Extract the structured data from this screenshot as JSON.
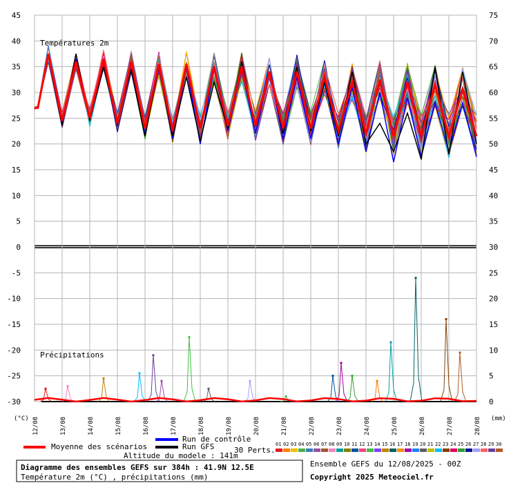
{
  "colors": {
    "grid": "#b4b4b4",
    "mean": "#ff0000",
    "control": "#0000ff",
    "gfs": "#000000",
    "member_palette": [
      "#e41a1c",
      "#ff7f00",
      "#f0c000",
      "#4daf4a",
      "#377eb8",
      "#984ea3",
      "#a65628",
      "#f781bf",
      "#00a0a0",
      "#808000",
      "#0050a0",
      "#ff4080",
      "#40c040",
      "#8040ff",
      "#c08000",
      "#006060",
      "#ff8c00",
      "#a000a0",
      "#2080ff",
      "#606060",
      "#c0c000",
      "#00c0ff",
      "#804000",
      "#e00060",
      "#30a030",
      "#1010a0",
      "#a0a0ff",
      "#ff6060",
      "#6a3d9a",
      "#b15928"
    ]
  },
  "header": {
    "temp_panel_label": "Températures 2m",
    "precip_panel_label": "Précipitations",
    "left_unit": "(°C)",
    "right_unit": "(mm)"
  },
  "legend": {
    "mean_label": "Moyenne des scénarios",
    "control_label": "Run de contrôle",
    "gfs_label": "Run GFS",
    "perts_label": "30 Perts.",
    "member_numbers": [
      "01",
      "02",
      "03",
      "04",
      "05",
      "06",
      "07",
      "08",
      "09",
      "10",
      "11",
      "12",
      "13",
      "14",
      "15",
      "16",
      "17",
      "18",
      "19",
      "20",
      "21",
      "22",
      "23",
      "24",
      "25",
      "26",
      "27",
      "28",
      "29",
      "30"
    ]
  },
  "footer": {
    "altitude": "Altitude du modele : 141m",
    "title_line1": "Diagramme des ensembles GEFS sur 384h : 41.9N 12.5E",
    "title_line2": "Température 2m (°C) , précipitations (mm)",
    "run_info": "Ensemble GEFS du 12/08/2025 - 00Z",
    "copyright": "Copyright 2025 Meteociel.fr"
  },
  "chart_data": {
    "type": "line",
    "x_dates": [
      "12/08",
      "13/08",
      "14/08",
      "15/08",
      "16/08",
      "17/08",
      "18/08",
      "19/08",
      "20/08",
      "21/08",
      "22/08",
      "23/08",
      "24/08",
      "25/08",
      "26/08",
      "27/08",
      "28/08"
    ],
    "left_axis_ticks": [
      "45",
      "40",
      "35",
      "30",
      "25",
      "20",
      "15",
      "10",
      "5",
      "0",
      "-5",
      "-10",
      "-15",
      "-20",
      "-25",
      "-30"
    ],
    "right_axis_ticks": [
      "75",
      "70",
      "65",
      "60",
      "55",
      "50",
      "45",
      "40",
      "35",
      "30",
      "25",
      "20",
      "15",
      "10",
      "5",
      "0"
    ],
    "temperature": {
      "ylim": [
        -30,
        45
      ],
      "daily_max": [
        37.5,
        36.0,
        36.5,
        36.0,
        35.5,
        35.5,
        35.0,
        35.0,
        34.0,
        34.0,
        33.0,
        32.0,
        32.5,
        32.0,
        31.5,
        30.5
      ],
      "daily_min": [
        27.0,
        24.5,
        25.0,
        24.0,
        23.0,
        22.5,
        23.0,
        23.5,
        23.5,
        23.0,
        23.0,
        22.5,
        22.0,
        21.5,
        21.5,
        21.5
      ],
      "final": 21.5,
      "gfs_max": [
        37.0,
        37.5,
        35.0,
        34.5,
        35.0,
        33.0,
        32.0,
        36.0,
        34.0,
        35.0,
        32.0,
        34.0,
        24.0,
        26.0,
        35.0,
        34.0
      ],
      "gfs_min": [
        27.0,
        23.5,
        24.5,
        24.5,
        21.5,
        21.5,
        20.5,
        23.0,
        23.5,
        22.0,
        22.5,
        21.5,
        20.0,
        18.5,
        17.0,
        18.0
      ],
      "gfs_final": 20.0,
      "control_max": [
        37.0,
        36.5,
        36.0,
        35.5,
        35.0,
        35.0,
        34.5,
        34.5,
        34.0,
        33.0,
        32.0,
        31.0,
        30.0,
        29.0,
        28.0,
        28.0
      ],
      "control_min": [
        27.0,
        24.0,
        25.0,
        23.5,
        22.0,
        21.0,
        20.0,
        22.5,
        22.0,
        21.0,
        21.0,
        20.0,
        18.5,
        16.5,
        17.5,
        18.5
      ],
      "control_final": 17.5
    },
    "precipitation": {
      "zero_level_on_left_axis": -30,
      "spikes": [
        {
          "day": 0.4,
          "mm": 2.5
        },
        {
          "day": 1.2,
          "mm": 3.0
        },
        {
          "day": 2.5,
          "mm": 4.5
        },
        {
          "day": 3.8,
          "mm": 5.5
        },
        {
          "day": 4.3,
          "mm": 9.0
        },
        {
          "day": 4.6,
          "mm": 4.0
        },
        {
          "day": 5.6,
          "mm": 12.5
        },
        {
          "day": 6.3,
          "mm": 2.5
        },
        {
          "day": 7.8,
          "mm": 4.0
        },
        {
          "day": 9.1,
          "mm": 1.0
        },
        {
          "day": 10.8,
          "mm": 5.0
        },
        {
          "day": 11.1,
          "mm": 7.5
        },
        {
          "day": 11.5,
          "mm": 5.0
        },
        {
          "day": 12.4,
          "mm": 4.0
        },
        {
          "day": 12.9,
          "mm": 11.5
        },
        {
          "day": 13.8,
          "mm": 24.0
        },
        {
          "day": 14.9,
          "mm": 16.0
        },
        {
          "day": 15.4,
          "mm": 9.5
        }
      ]
    }
  }
}
